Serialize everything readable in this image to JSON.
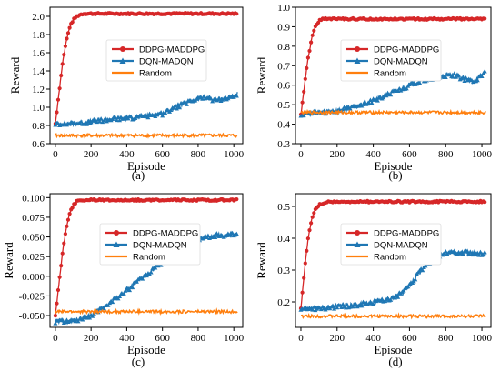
{
  "chart_data": [
    {
      "type": "line",
      "caption": "(a)",
      "xlabel": "Episode",
      "ylabel": "Reward",
      "xlim": [
        -30,
        1050
      ],
      "ylim": [
        0.6,
        2.1
      ],
      "xticks": [
        0,
        200,
        400,
        600,
        800,
        1000
      ],
      "yticks": [
        0.6,
        0.8,
        1.0,
        1.2,
        1.4,
        1.6,
        1.8,
        2.0
      ],
      "ytick_labels": [
        "0.6",
        "0.8",
        "1.0",
        "1.2",
        "1.4",
        "1.6",
        "1.8",
        "2.0"
      ],
      "grid": false,
      "legend": "center",
      "series": [
        {
          "name": "DDPG-MADDPG",
          "color": "#d62728",
          "marker": "circle",
          "x": [
            0,
            20,
            40,
            60,
            80,
            100,
            120,
            140,
            160,
            200,
            300,
            400,
            500,
            600,
            700,
            800,
            900,
            1000,
            1020
          ],
          "y": [
            0.82,
            1.15,
            1.48,
            1.72,
            1.88,
            1.96,
            2.0,
            2.02,
            2.03,
            2.03,
            2.03,
            2.03,
            2.03,
            2.03,
            2.03,
            2.03,
            2.03,
            2.03,
            2.03
          ]
        },
        {
          "name": "DQN-MADQN",
          "color": "#1f77b4",
          "marker": "triangle",
          "x": [
            0,
            100,
            200,
            300,
            400,
            500,
            600,
            650,
            700,
            750,
            800,
            850,
            900,
            950,
            1000,
            1020
          ],
          "y": [
            0.82,
            0.82,
            0.84,
            0.87,
            0.88,
            0.9,
            0.93,
            0.98,
            1.02,
            1.06,
            1.1,
            1.1,
            1.08,
            1.1,
            1.12,
            1.15
          ]
        },
        {
          "name": "Random",
          "color": "#ff7f0e",
          "marker": "none",
          "x": [
            0,
            200,
            400,
            600,
            800,
            1000,
            1020
          ],
          "y": [
            0.69,
            0.69,
            0.69,
            0.69,
            0.69,
            0.69,
            0.68
          ]
        }
      ]
    },
    {
      "type": "line",
      "caption": "(b)",
      "xlabel": "Episode",
      "ylabel": "Reward",
      "xlim": [
        -30,
        1050
      ],
      "ylim": [
        0.3,
        1.0
      ],
      "xticks": [
        0,
        200,
        400,
        600,
        800,
        1000
      ],
      "yticks": [
        0.3,
        0.4,
        0.5,
        0.6,
        0.7,
        0.8,
        0.9,
        1.0
      ],
      "ytick_labels": [
        "0.3",
        "0.4",
        "0.5",
        "0.6",
        "0.7",
        "0.8",
        "0.9",
        "1.0"
      ],
      "grid": false,
      "legend": "top-center",
      "series": [
        {
          "name": "DDPG-MADDPG",
          "color": "#d62728",
          "marker": "circle",
          "x": [
            0,
            20,
            40,
            60,
            80,
            100,
            120,
            140,
            200,
            300,
            400,
            500,
            600,
            700,
            800,
            900,
            1000,
            1020
          ],
          "y": [
            0.45,
            0.6,
            0.74,
            0.84,
            0.9,
            0.93,
            0.94,
            0.94,
            0.94,
            0.94,
            0.94,
            0.94,
            0.94,
            0.94,
            0.94,
            0.94,
            0.94,
            0.94
          ]
        },
        {
          "name": "DQN-MADQN",
          "color": "#1f77b4",
          "marker": "triangle",
          "x": [
            0,
            100,
            200,
            300,
            400,
            450,
            500,
            550,
            600,
            650,
            700,
            750,
            800,
            850,
            900,
            950,
            1000,
            1020
          ],
          "y": [
            0.45,
            0.46,
            0.47,
            0.49,
            0.52,
            0.54,
            0.56,
            0.58,
            0.6,
            0.62,
            0.63,
            0.64,
            0.65,
            0.65,
            0.63,
            0.62,
            0.65,
            0.68
          ]
        },
        {
          "name": "Random",
          "color": "#ff7f0e",
          "marker": "none",
          "x": [
            0,
            200,
            400,
            600,
            800,
            1000,
            1020
          ],
          "y": [
            0.46,
            0.46,
            0.46,
            0.46,
            0.46,
            0.46,
            0.46
          ]
        }
      ]
    },
    {
      "type": "line",
      "caption": "(c)",
      "xlabel": "Episode",
      "ylabel": "Reward",
      "xlim": [
        -30,
        1050
      ],
      "ylim": [
        -0.065,
        0.105
      ],
      "xticks": [
        0,
        200,
        400,
        600,
        800,
        1000
      ],
      "yticks": [
        -0.05,
        -0.025,
        0.0,
        0.025,
        0.05,
        0.075,
        0.1
      ],
      "ytick_labels": [
        "-0.050",
        "-0.025",
        "0.000",
        "0.025",
        "0.050",
        "0.075",
        "0.100"
      ],
      "grid": false,
      "legend": "top-center",
      "series": [
        {
          "name": "DDPG-MADDPG",
          "color": "#d62728",
          "marker": "circle",
          "x": [
            0,
            20,
            40,
            60,
            80,
            100,
            120,
            140,
            200,
            300,
            400,
            500,
            600,
            700,
            800,
            900,
            1000,
            1020
          ],
          "y": [
            -0.05,
            -0.01,
            0.03,
            0.06,
            0.08,
            0.09,
            0.095,
            0.097,
            0.097,
            0.097,
            0.097,
            0.097,
            0.097,
            0.097,
            0.097,
            0.097,
            0.097,
            0.097
          ]
        },
        {
          "name": "DQN-MADQN",
          "color": "#1f77b4",
          "marker": "triangle",
          "x": [
            0,
            100,
            200,
            300,
            400,
            500,
            600,
            700,
            800,
            900,
            1000,
            1020
          ],
          "y": [
            -0.058,
            -0.057,
            -0.05,
            -0.035,
            -0.018,
            0.0,
            0.018,
            0.035,
            0.048,
            0.052,
            0.053,
            0.053
          ]
        },
        {
          "name": "Random",
          "color": "#ff7f0e",
          "marker": "none",
          "x": [
            0,
            200,
            400,
            600,
            800,
            1000,
            1020
          ],
          "y": [
            -0.045,
            -0.045,
            -0.045,
            -0.045,
            -0.045,
            -0.045,
            -0.045
          ]
        }
      ]
    },
    {
      "type": "line",
      "caption": "(d)",
      "xlabel": "Episode",
      "ylabel": "Reward",
      "xlim": [
        -30,
        1050
      ],
      "ylim": [
        0.12,
        0.54
      ],
      "xticks": [
        0,
        200,
        400,
        600,
        800,
        1000
      ],
      "yticks": [
        0.2,
        0.3,
        0.4,
        0.5
      ],
      "ytick_labels": [
        "0.2",
        "0.3",
        "0.4",
        "0.5"
      ],
      "grid": false,
      "legend": "top-center",
      "series": [
        {
          "name": "DDPG-MADDPG",
          "color": "#d62728",
          "marker": "circle",
          "x": [
            0,
            20,
            40,
            60,
            80,
            100,
            120,
            140,
            200,
            300,
            400,
            500,
            600,
            700,
            800,
            900,
            1000,
            1020
          ],
          "y": [
            0.18,
            0.3,
            0.4,
            0.46,
            0.49,
            0.505,
            0.51,
            0.515,
            0.515,
            0.515,
            0.515,
            0.515,
            0.515,
            0.515,
            0.515,
            0.515,
            0.515,
            0.515
          ]
        },
        {
          "name": "DQN-MADQN",
          "color": "#1f77b4",
          "marker": "triangle",
          "x": [
            0,
            100,
            200,
            300,
            400,
            500,
            550,
            600,
            650,
            700,
            750,
            800,
            900,
            1000,
            1020
          ],
          "y": [
            0.18,
            0.18,
            0.185,
            0.19,
            0.2,
            0.21,
            0.225,
            0.25,
            0.29,
            0.32,
            0.34,
            0.355,
            0.355,
            0.35,
            0.35
          ]
        },
        {
          "name": "Random",
          "color": "#ff7f0e",
          "marker": "none",
          "x": [
            0,
            200,
            400,
            600,
            800,
            1000,
            1020
          ],
          "y": [
            0.155,
            0.155,
            0.155,
            0.155,
            0.155,
            0.155,
            0.155
          ]
        }
      ]
    }
  ]
}
